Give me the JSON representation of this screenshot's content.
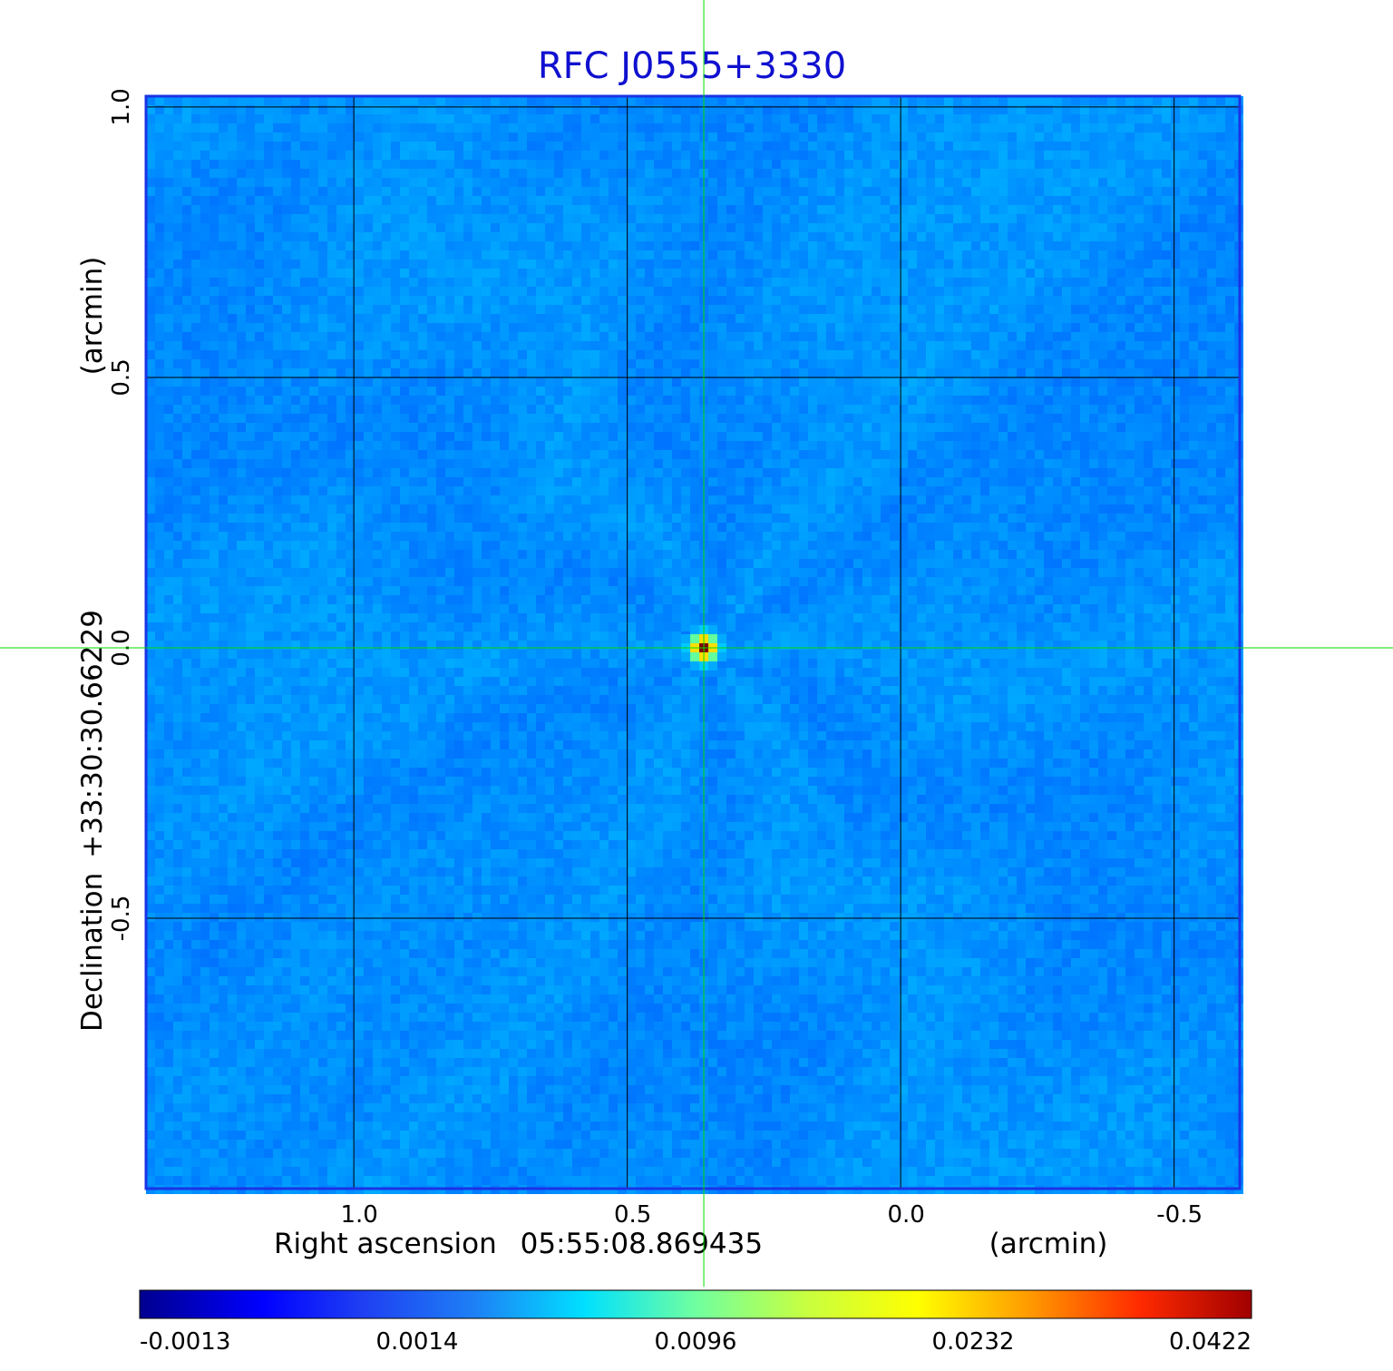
{
  "chart_data": {
    "type": "heatmap",
    "title": "RFC J0555+3330",
    "x_axis": {
      "label": "Right ascension",
      "reference": "05:55:08.869435",
      "unit": "(arcmin)",
      "range": [
        1.38,
        -0.62
      ],
      "ticks": [
        1.0,
        0.5,
        0.0,
        -0.5
      ],
      "tick_labels": [
        "1.0",
        "0.5",
        "0.0",
        "-0.5"
      ]
    },
    "y_axis": {
      "label": "Declination",
      "reference": "+33:30:30.66229",
      "unit": "(arcmin)",
      "range": [
        -1.0,
        1.02
      ],
      "ticks": [
        1.0,
        0.5,
        0.0,
        -0.5
      ],
      "tick_labels": [
        "1.0",
        "0.5",
        "0.0",
        "-0.5"
      ]
    },
    "grid": true,
    "colormap": "jet",
    "background_level": 0.0014,
    "source": {
      "x": 0.36,
      "y": 0.0,
      "peak": 0.0422
    },
    "crosshair": {
      "x": 0.36,
      "y": 0.0,
      "color": "#00dd00"
    },
    "colorbar": {
      "placement": "bottom",
      "tick_labels": [
        "-0.0013",
        "0.0014",
        "0.0096",
        "0.0232",
        "0.0422"
      ],
      "min": -0.0013,
      "max": 0.0422
    },
    "colors": {
      "frame": "#1a33e6",
      "title": "#1010d0",
      "grid": "#000000"
    }
  }
}
